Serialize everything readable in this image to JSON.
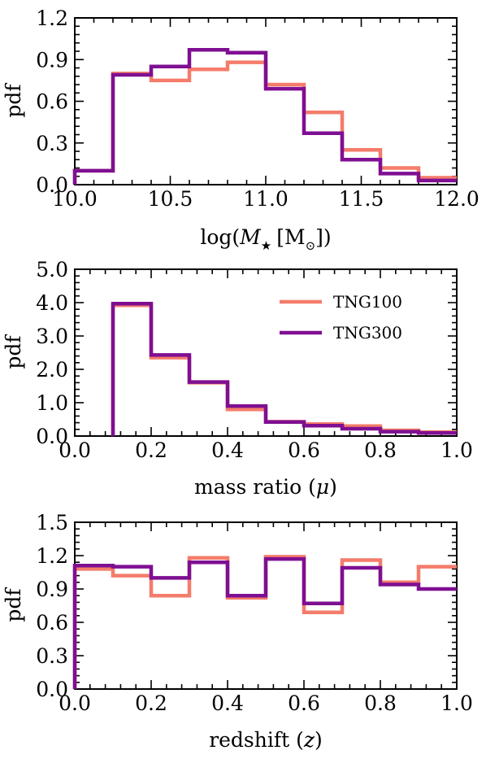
{
  "colors": {
    "tng100": "#f47c6b",
    "tng300": "#7f0f92"
  },
  "chart_data": [
    {
      "type": "histogram",
      "xlabel_prefix": "log(",
      "xlabel_math": "M",
      "xlabel_sub": "★",
      "xlabel_unit": "[M",
      "xlabel_unit_sub": "⊙",
      "xlabel_suffix": "])",
      "ylabel": "pdf",
      "xlim": [
        10.0,
        12.0
      ],
      "ylim": [
        0.0,
        1.2
      ],
      "xticks": [
        "10.0",
        "10.5",
        "11.0",
        "11.5",
        "12.0"
      ],
      "xtick_values": [
        10.0,
        10.5,
        11.0,
        11.5,
        12.0
      ],
      "yticks": [
        "0.0",
        "0.3",
        "0.6",
        "0.9",
        "1.2"
      ],
      "ytick_values": [
        0.0,
        0.3,
        0.6,
        0.9,
        1.2
      ],
      "bin_edges": [
        10.0,
        10.2,
        10.4,
        10.6,
        10.8,
        11.0,
        11.2,
        11.4,
        11.6,
        11.8,
        12.0
      ],
      "series": [
        {
          "name": "TNG100",
          "values": [
            0.1,
            0.8,
            0.75,
            0.83,
            0.88,
            0.72,
            0.52,
            0.25,
            0.12,
            0.05
          ]
        },
        {
          "name": "TNG300",
          "values": [
            0.1,
            0.79,
            0.85,
            0.97,
            0.95,
            0.69,
            0.37,
            0.18,
            0.08,
            0.03
          ]
        }
      ]
    },
    {
      "type": "histogram",
      "xlabel": "mass ratio (",
      "xlabel_math": "μ",
      "xlabel_suffix": ")",
      "ylabel": "pdf",
      "xlim": [
        0.0,
        1.0
      ],
      "ylim": [
        0.0,
        5.0
      ],
      "xticks": [
        "0.0",
        "0.2",
        "0.4",
        "0.6",
        "0.8",
        "1.0"
      ],
      "xtick_values": [
        0.0,
        0.2,
        0.4,
        0.6,
        0.8,
        1.0
      ],
      "yticks": [
        "0.0",
        "1.0",
        "2.0",
        "3.0",
        "4.0",
        "5.0"
      ],
      "ytick_values": [
        0.0,
        1.0,
        2.0,
        3.0,
        4.0,
        5.0
      ],
      "bin_edges": [
        0.1,
        0.2,
        0.3,
        0.4,
        0.5,
        0.6,
        0.7,
        0.8,
        0.9,
        1.0
      ],
      "legend": {
        "placement": "upper-right",
        "entries": [
          "TNG100",
          "TNG300"
        ]
      },
      "series": [
        {
          "name": "TNG100",
          "values": [
            3.92,
            2.35,
            1.6,
            0.8,
            0.43,
            0.36,
            0.3,
            0.17,
            0.12
          ]
        },
        {
          "name": "TNG300",
          "values": [
            3.97,
            2.43,
            1.62,
            0.9,
            0.42,
            0.31,
            0.22,
            0.13,
            0.09
          ]
        }
      ]
    },
    {
      "type": "histogram",
      "xlabel": "redshift (",
      "xlabel_math": "z",
      "xlabel_suffix": ")",
      "ylabel": "pdf",
      "xlim": [
        0.0,
        1.0
      ],
      "ylim": [
        0.0,
        1.5
      ],
      "xticks": [
        "0.0",
        "0.2",
        "0.4",
        "0.6",
        "0.8",
        "1.0"
      ],
      "xtick_values": [
        0.0,
        0.2,
        0.4,
        0.6,
        0.8,
        1.0
      ],
      "yticks": [
        "0.0",
        "0.3",
        "0.6",
        "0.9",
        "1.2",
        "1.5"
      ],
      "ytick_values": [
        0.0,
        0.3,
        0.6,
        0.9,
        1.2,
        1.5
      ],
      "bin_edges": [
        0.0,
        0.1,
        0.2,
        0.3,
        0.4,
        0.5,
        0.6,
        0.7,
        0.8,
        0.9,
        1.0
      ],
      "series": [
        {
          "name": "TNG100",
          "values": [
            1.08,
            1.02,
            0.84,
            1.18,
            0.82,
            1.19,
            0.69,
            1.16,
            0.96,
            1.1
          ]
        },
        {
          "name": "TNG300",
          "values": [
            1.11,
            1.1,
            1.0,
            1.14,
            0.84,
            1.17,
            0.77,
            1.09,
            0.94,
            0.9
          ]
        }
      ]
    }
  ]
}
